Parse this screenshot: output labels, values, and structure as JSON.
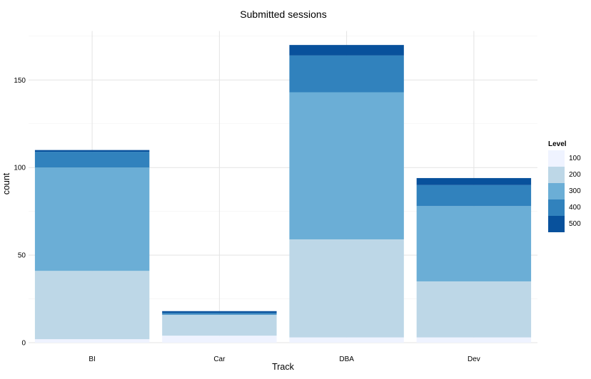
{
  "chart_data": {
    "type": "bar",
    "stacked": true,
    "title": "Submitted sessions",
    "xlabel": "Track",
    "ylabel": "count",
    "categories": [
      "BI",
      "Car",
      "DBA",
      "Dev"
    ],
    "ylim": [
      0,
      178
    ],
    "yticks": [
      0,
      50,
      100,
      150
    ],
    "grid": true,
    "legend_title": "Level",
    "legend_position": "right",
    "series": [
      {
        "name": "100",
        "color": "#eff3ff",
        "values": [
          2,
          4,
          3,
          3
        ]
      },
      {
        "name": "200",
        "color": "#bdd7e7",
        "values": [
          39,
          12,
          56,
          32
        ]
      },
      {
        "name": "300",
        "color": "#6baed6",
        "values": [
          59,
          0,
          84,
          43
        ]
      },
      {
        "name": "400",
        "color": "#3182bd",
        "values": [
          9,
          1,
          21,
          12
        ]
      },
      {
        "name": "500",
        "color": "#08519c",
        "values": [
          1,
          1,
          6,
          4
        ]
      }
    ]
  }
}
